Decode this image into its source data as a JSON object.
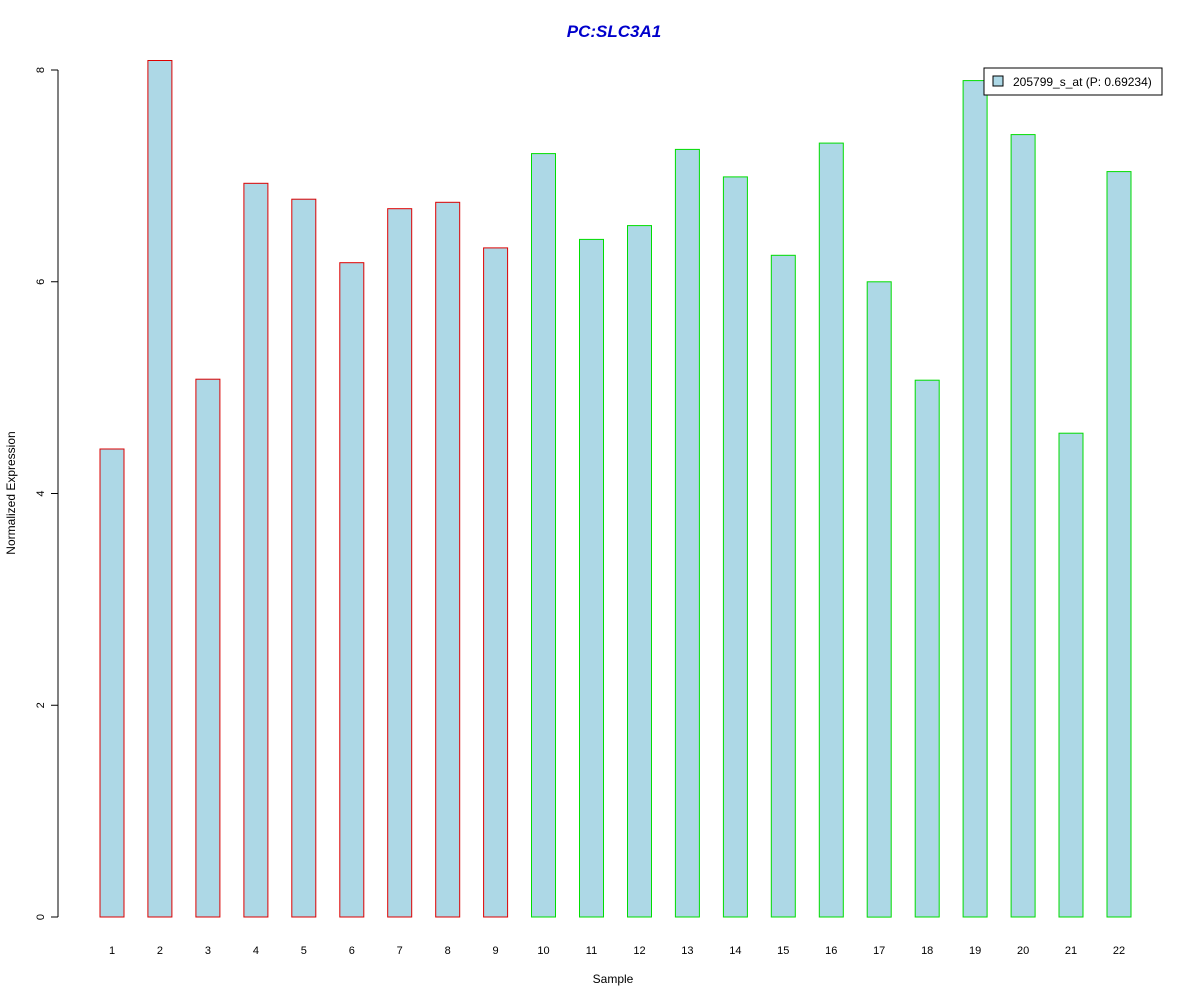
{
  "chart_data": {
    "type": "bar",
    "title": "PC:SLC3A1",
    "xlabel": "Sample",
    "ylabel": "Normalized Expression",
    "categories": [
      "1",
      "2",
      "3",
      "4",
      "5",
      "6",
      "7",
      "8",
      "9",
      "10",
      "11",
      "12",
      "13",
      "14",
      "15",
      "16",
      "17",
      "18",
      "19",
      "20",
      "21",
      "22"
    ],
    "series": [
      {
        "name": "205799_s_at (P: 0.69234)",
        "values": [
          4.42,
          8.09,
          5.08,
          6.93,
          6.78,
          6.18,
          6.69,
          6.75,
          6.32,
          7.21,
          6.4,
          6.53,
          7.25,
          6.99,
          6.25,
          7.31,
          6.0,
          5.07,
          7.9,
          7.39,
          4.57,
          7.04
        ]
      }
    ],
    "groups": [
      {
        "samples": [
          1,
          2,
          3,
          4,
          5,
          6,
          7,
          8,
          9
        ],
        "border_color": "#dd0000"
      },
      {
        "samples": [
          10,
          11,
          12,
          13,
          14,
          15,
          16,
          17,
          18,
          19,
          20,
          21,
          22
        ],
        "border_color": "#00dd00"
      }
    ],
    "ylim": [
      0,
      8
    ],
    "yticks": [
      0,
      2,
      4,
      6,
      8
    ],
    "bar_fill_color": "#add8e6",
    "title_color": "#0000cc",
    "legend_position": "top-right",
    "grid": false
  }
}
